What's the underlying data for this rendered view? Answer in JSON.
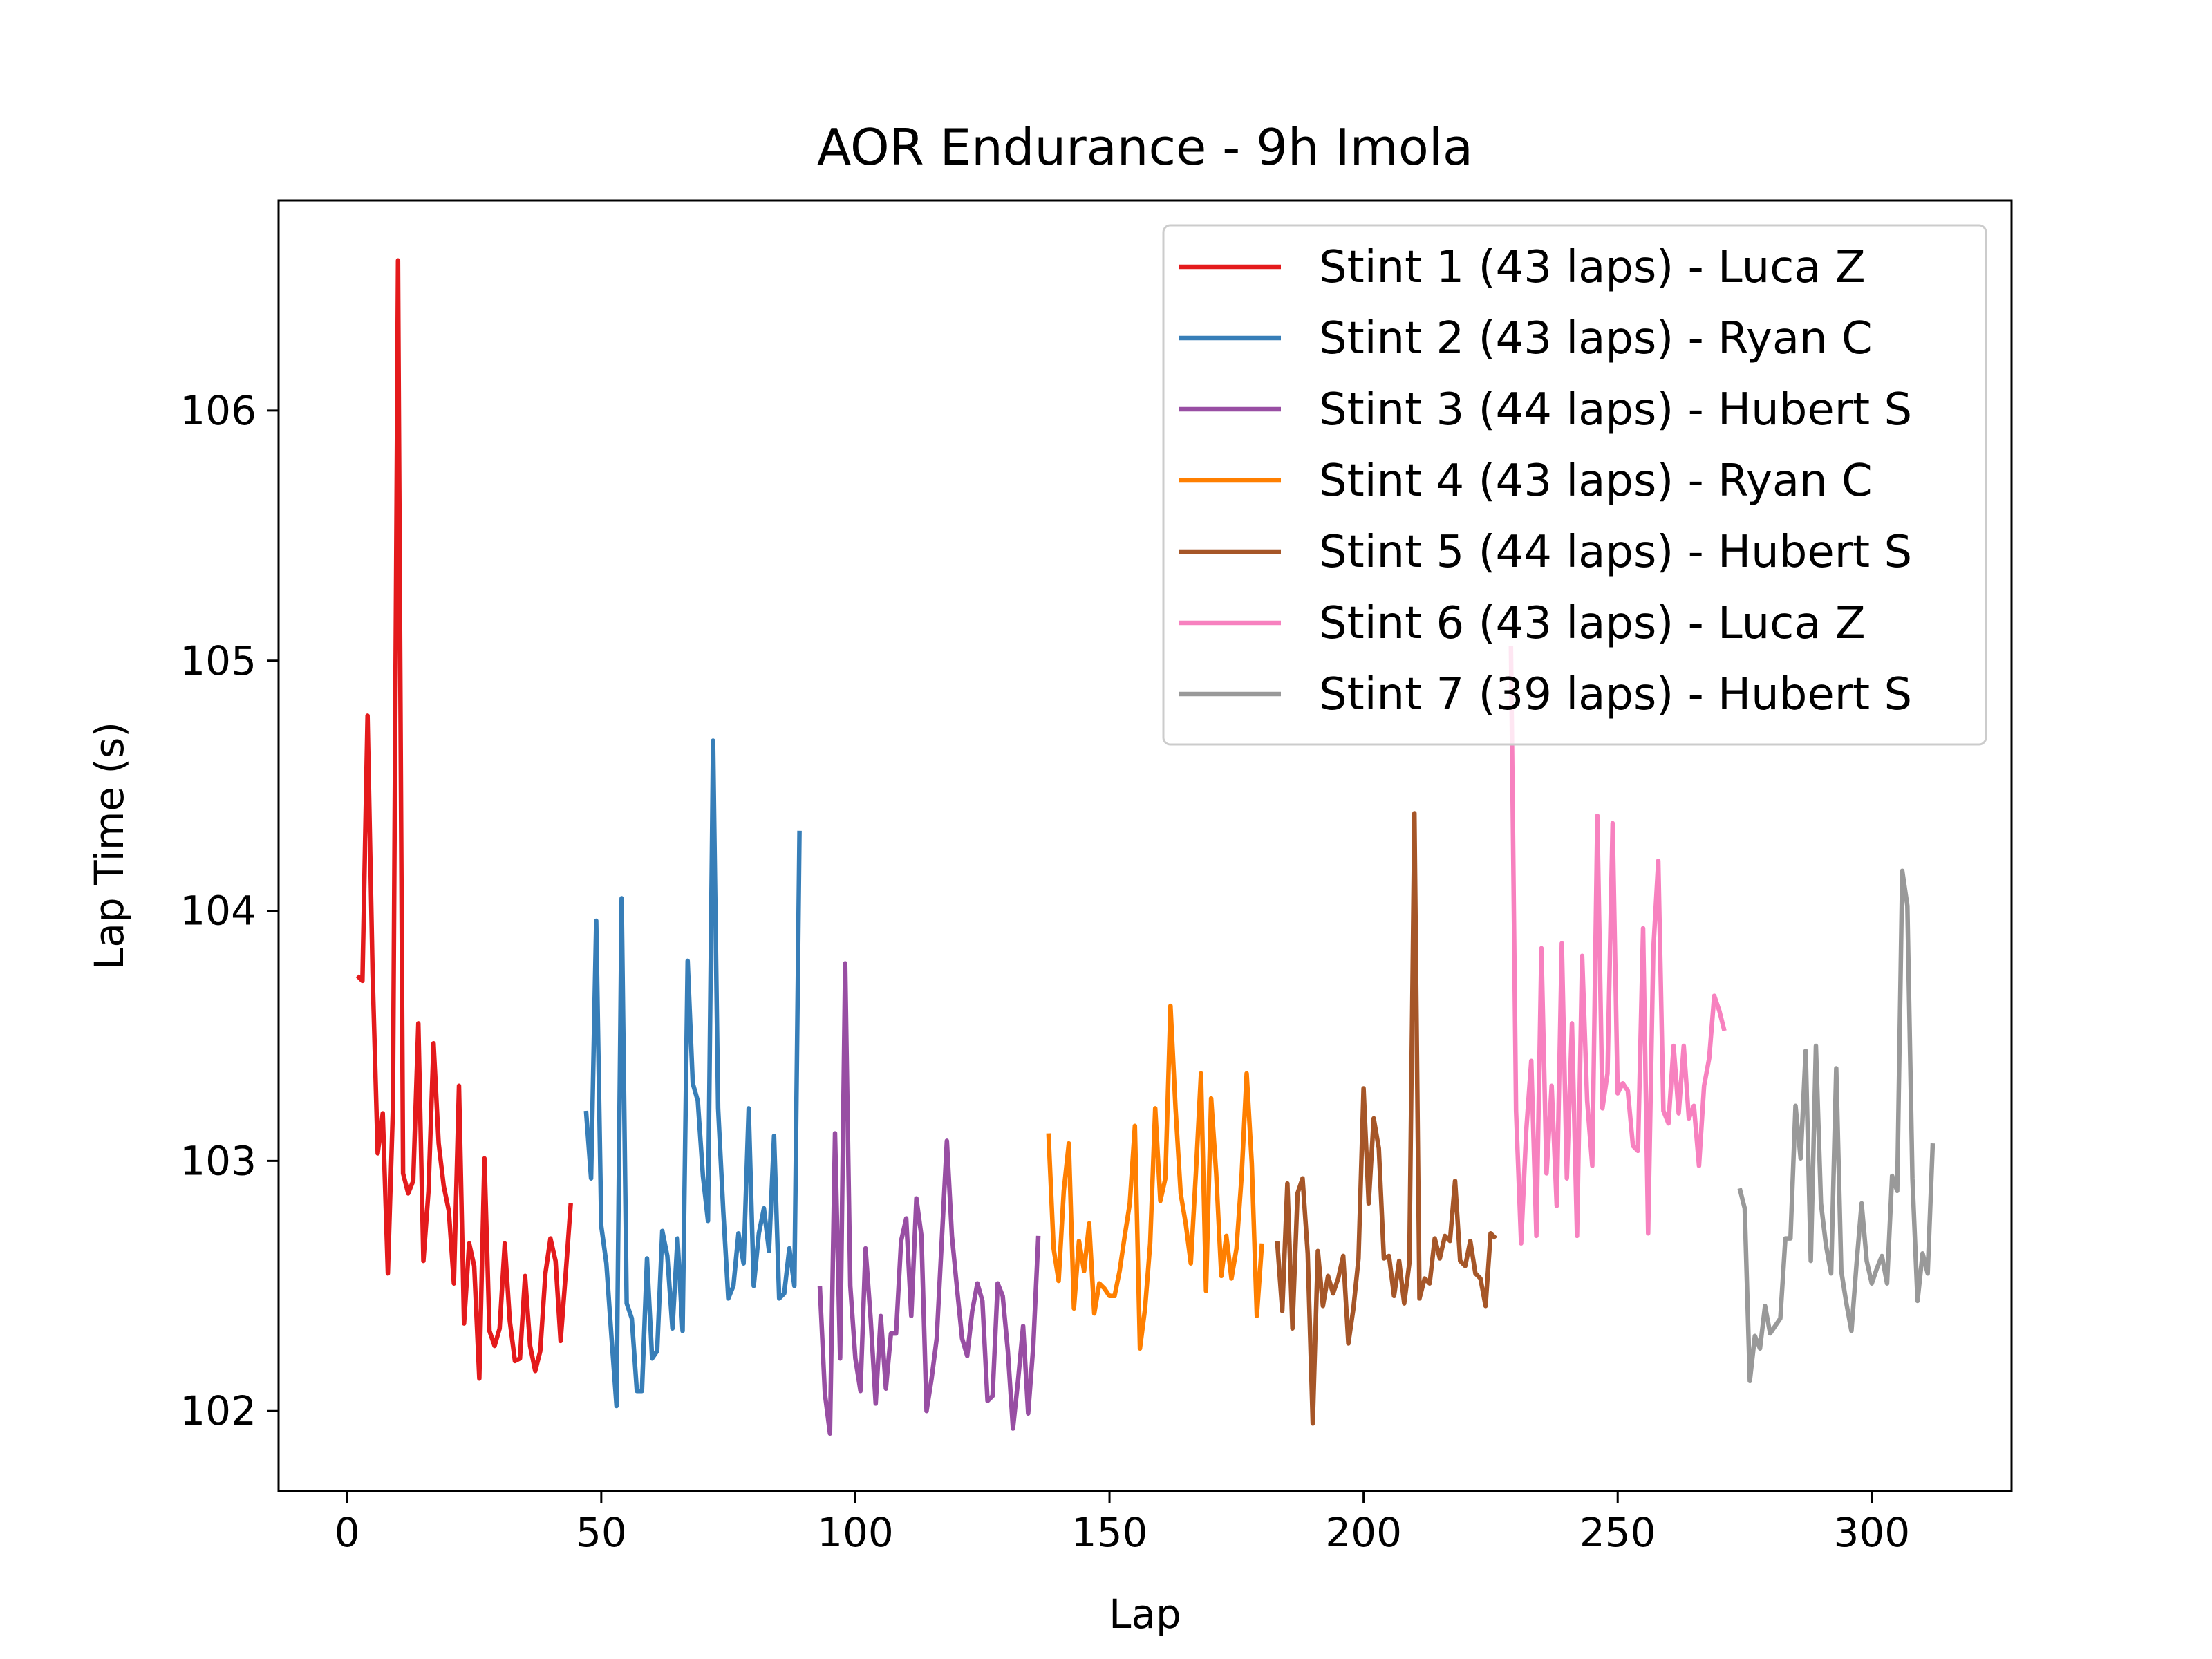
{
  "chart_data": {
    "type": "line",
    "title": "AOR Endurance - 9h Imola",
    "xlabel": "Lap",
    "ylabel": "Lap Time (s)",
    "xlim": [
      -13.5,
      327.5
    ],
    "ylim": [
      101.68,
      106.84
    ],
    "xticks": [
      0,
      50,
      100,
      150,
      200,
      250,
      300
    ],
    "yticks": [
      102,
      103,
      104,
      105,
      106
    ],
    "grid": false,
    "legend_position": "top-right",
    "series": [
      {
        "name": "Stint 1 (43 laps) - Luca Z",
        "color": "#e41a1c",
        "x": [
          2,
          3,
          4,
          5,
          6,
          7,
          8,
          9,
          10,
          11,
          12,
          13,
          14,
          15,
          16,
          17,
          18,
          19,
          20,
          21,
          22,
          23,
          24,
          25,
          26,
          27,
          28,
          29,
          30,
          31,
          32,
          33,
          34,
          35,
          36,
          37,
          38,
          39,
          40,
          41,
          42,
          43,
          44
        ],
        "y": [
          103.74,
          103.72,
          104.78,
          103.75,
          103.03,
          103.19,
          102.55,
          103.21,
          106.6,
          102.95,
          102.87,
          102.92,
          103.55,
          102.6,
          102.88,
          103.47,
          103.07,
          102.9,
          102.8,
          102.51,
          103.3,
          102.35,
          102.67,
          102.58,
          102.13,
          103.01,
          102.32,
          102.26,
          102.33,
          102.67,
          102.36,
          102.2,
          102.21,
          102.54,
          102.26,
          102.16,
          102.24,
          102.55,
          102.69,
          102.6,
          102.28,
          102.55,
          102.83
        ]
      },
      {
        "name": "Stint 2 (43 laps) - Ryan C",
        "color": "#377eb8",
        "x": [
          47,
          48,
          49,
          50,
          51,
          52,
          53,
          54,
          55,
          56,
          57,
          58,
          59,
          60,
          61,
          62,
          63,
          64,
          65,
          66,
          67,
          68,
          69,
          70,
          71,
          72,
          73,
          74,
          75,
          76,
          77,
          78,
          79,
          80,
          81,
          82,
          83,
          84,
          85,
          86,
          87,
          88,
          89
        ],
        "y": [
          103.2,
          102.93,
          103.96,
          102.74,
          102.59,
          102.3,
          102.02,
          104.05,
          102.43,
          102.37,
          102.08,
          102.08,
          102.61,
          102.21,
          102.24,
          102.72,
          102.62,
          102.33,
          102.69,
          102.32,
          103.8,
          103.31,
          103.24,
          102.94,
          102.76,
          104.68,
          103.21,
          102.8,
          102.45,
          102.5,
          102.71,
          102.59,
          103.21,
          102.5,
          102.71,
          102.81,
          102.64,
          103.1,
          102.45,
          102.47,
          102.65,
          102.5,
          104.32
        ]
      },
      {
        "name": "Stint 3 (44 laps) - Hubert S",
        "color": "#984ea3",
        "x": [
          93,
          94,
          95,
          96,
          97,
          98,
          99,
          100,
          101,
          102,
          103,
          104,
          105,
          106,
          107,
          108,
          109,
          110,
          111,
          112,
          113,
          114,
          115,
          116,
          117,
          118,
          119,
          120,
          121,
          122,
          123,
          124,
          125,
          126,
          127,
          128,
          129,
          130,
          131,
          132,
          133,
          134,
          135,
          136
        ],
        "y": [
          102.5,
          102.07,
          101.91,
          103.11,
          102.21,
          103.79,
          102.5,
          102.21,
          102.08,
          102.65,
          102.37,
          102.03,
          102.38,
          102.09,
          102.31,
          102.31,
          102.68,
          102.77,
          102.38,
          102.85,
          102.7,
          102.0,
          102.13,
          102.29,
          102.68,
          103.08,
          102.7,
          102.49,
          102.29,
          102.22,
          102.4,
          102.51,
          102.44,
          102.04,
          102.06,
          102.51,
          102.46,
          102.24,
          101.93,
          102.12,
          102.34,
          101.99,
          102.26,
          102.7
        ]
      },
      {
        "name": "Stint 4 (43 laps) - Ryan C",
        "color": "#ff7f00",
        "x": [
          138,
          139,
          140,
          141,
          142,
          143,
          144,
          145,
          146,
          147,
          148,
          149,
          150,
          151,
          152,
          153,
          154,
          155,
          156,
          157,
          158,
          159,
          160,
          161,
          162,
          163,
          164,
          165,
          166,
          167,
          168,
          169,
          170,
          171,
          172,
          173,
          174,
          175,
          176,
          177,
          178,
          179,
          180
        ],
        "y": [
          103.11,
          102.65,
          102.52,
          102.88,
          103.07,
          102.41,
          102.68,
          102.56,
          102.75,
          102.39,
          102.51,
          102.49,
          102.46,
          102.46,
          102.56,
          102.7,
          102.83,
          103.14,
          102.25,
          102.41,
          102.67,
          103.21,
          102.84,
          102.93,
          103.62,
          103.21,
          102.87,
          102.75,
          102.59,
          102.95,
          103.35,
          102.48,
          103.25,
          102.95,
          102.54,
          102.7,
          102.53,
          102.65,
          102.94,
          103.35,
          102.99,
          102.38,
          102.67
        ]
      },
      {
        "name": "Stint 5 (44 laps) - Hubert S",
        "color": "#a65628",
        "x": [
          183,
          184,
          185,
          186,
          187,
          188,
          189,
          190,
          191,
          192,
          193,
          194,
          195,
          196,
          197,
          198,
          199,
          200,
          201,
          202,
          203,
          204,
          205,
          206,
          207,
          208,
          209,
          210,
          211,
          212,
          213,
          214,
          215,
          216,
          217,
          218,
          219,
          220,
          221,
          222,
          223,
          224,
          225,
          226
        ],
        "y": [
          102.68,
          102.4,
          102.91,
          102.33,
          102.87,
          102.93,
          102.63,
          101.95,
          102.64,
          102.42,
          102.54,
          102.47,
          102.53,
          102.62,
          102.27,
          102.41,
          102.61,
          103.29,
          102.83,
          103.17,
          103.05,
          102.61,
          102.62,
          102.46,
          102.6,
          102.43,
          102.59,
          104.39,
          102.45,
          102.53,
          102.51,
          102.69,
          102.61,
          102.7,
          102.68,
          102.92,
          102.6,
          102.58,
          102.68,
          102.55,
          102.53,
          102.42,
          102.71,
          102.69
        ]
      },
      {
        "name": "Stint 6 (43 laps) - Luca Z",
        "color": "#f781bf",
        "x": [
          229,
          230,
          231,
          232,
          233,
          234,
          235,
          236,
          237,
          238,
          239,
          240,
          241,
          242,
          243,
          244,
          245,
          246,
          247,
          248,
          249,
          250,
          251,
          252,
          253,
          254,
          255,
          256,
          257,
          258,
          259,
          260,
          261,
          262,
          263,
          264,
          265,
          266,
          267,
          268,
          269,
          270,
          271
        ],
        "y": [
          105.06,
          103.2,
          102.67,
          103.12,
          103.4,
          102.7,
          103.85,
          102.95,
          103.3,
          102.82,
          103.87,
          102.93,
          103.55,
          102.7,
          103.82,
          103.24,
          102.98,
          104.38,
          103.21,
          103.35,
          104.35,
          103.27,
          103.31,
          103.28,
          103.06,
          103.04,
          103.93,
          102.71,
          103.84,
          104.2,
          103.2,
          103.15,
          103.46,
          103.19,
          103.46,
          103.17,
          103.22,
          102.98,
          103.3,
          103.41,
          103.66,
          103.6,
          103.52
        ]
      },
      {
        "name": "Stint 7 (39 laps) - Hubert S",
        "color": "#999999",
        "x": [
          274,
          275,
          276,
          277,
          278,
          279,
          280,
          281,
          282,
          283,
          284,
          285,
          286,
          287,
          288,
          289,
          290,
          291,
          292,
          293,
          294,
          295,
          296,
          297,
          298,
          299,
          300,
          301,
          302,
          303,
          304,
          305,
          306,
          307,
          308,
          309,
          310,
          311,
          312
        ],
        "y": [
          102.89,
          102.81,
          102.12,
          102.3,
          102.25,
          102.42,
          102.31,
          102.34,
          102.37,
          102.69,
          102.69,
          103.22,
          103.01,
          103.44,
          102.6,
          103.46,
          102.83,
          102.66,
          102.55,
          103.37,
          102.56,
          102.43,
          102.32,
          102.59,
          102.83,
          102.6,
          102.51,
          102.57,
          102.62,
          102.51,
          102.94,
          102.88,
          104.16,
          104.02,
          102.93,
          102.44,
          102.63,
          102.55,
          103.07
        ]
      }
    ]
  }
}
